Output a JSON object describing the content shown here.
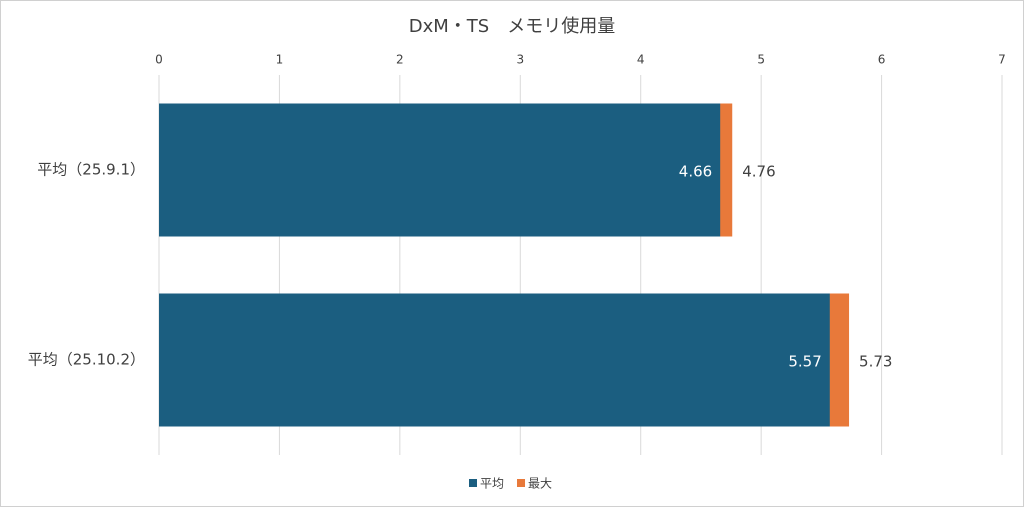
{
  "chart_data": {
    "type": "bar",
    "orientation": "horizontal",
    "title": "DxM・TS　メモリ使用量",
    "categories": [
      "平均（25.9.1）",
      "平均（25.10.2）"
    ],
    "series": [
      {
        "name": "平均",
        "color": "#1b5e80",
        "values": [
          4.66,
          5.57
        ]
      },
      {
        "name": "最大",
        "color": "#e8793a",
        "values": [
          4.76,
          5.73
        ]
      }
    ],
    "xlim": [
      0,
      7
    ],
    "xticks": [
      0,
      1,
      2,
      3,
      4,
      5,
      6,
      7
    ],
    "grid": true,
    "legend": "bottom"
  }
}
